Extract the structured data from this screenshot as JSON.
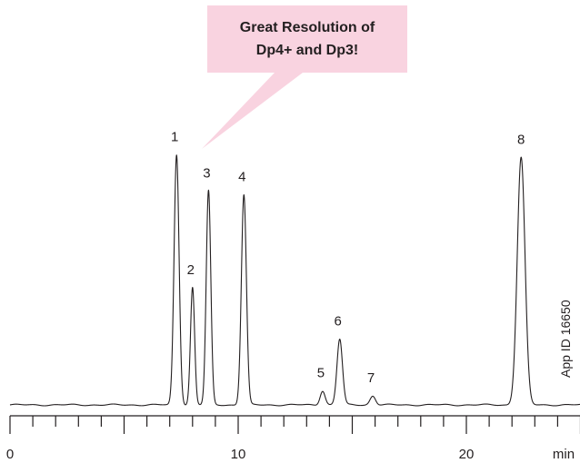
{
  "callout": {
    "lines": [
      "Great Resolution of",
      "Dp4+ and Dp3!"
    ],
    "fill": "#f9d3e0"
  },
  "side_label": "App ID 16650",
  "chart_data": {
    "type": "line",
    "title": "",
    "xlabel": "",
    "ylabel": "",
    "x_unit": "min",
    "xlim": [
      0,
      25
    ],
    "x_ticks": [
      0,
      10,
      20
    ],
    "x_minor_step": 1,
    "grid": false,
    "series": [
      {
        "peaks": [
          {
            "label": "1",
            "x": 7.3,
            "height": 0.97,
            "width": 0.11
          },
          {
            "label": "2",
            "x": 8.0,
            "height": 0.455,
            "width": 0.09
          },
          {
            "label": "3",
            "x": 8.7,
            "height": 0.83,
            "width": 0.1
          },
          {
            "label": "4",
            "x": 10.25,
            "height": 0.815,
            "width": 0.11
          },
          {
            "label": "5",
            "x": 13.7,
            "height": 0.055,
            "width": 0.11
          },
          {
            "label": "6",
            "x": 14.45,
            "height": 0.255,
            "width": 0.12
          },
          {
            "label": "7",
            "x": 15.9,
            "height": 0.035,
            "width": 0.12
          },
          {
            "label": "8",
            "x": 22.4,
            "height": 0.96,
            "width": 0.17
          }
        ],
        "color": "#231f20"
      }
    ]
  }
}
